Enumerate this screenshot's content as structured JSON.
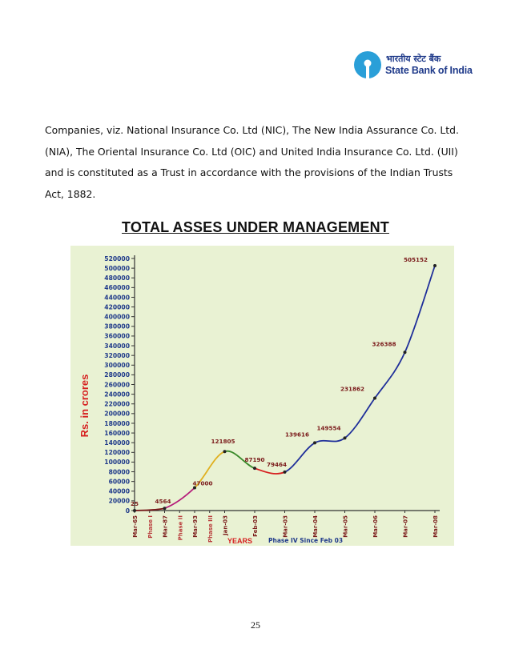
{
  "header": {
    "logo_hindi": "भारतीय स्टेट बैंक",
    "logo_english": "State Bank of India"
  },
  "paragraph": {
    "lines": [
      "Companies, viz. National Insurance Co. Ltd (NIC), The New India Assurance Co. Ltd.",
      "(NIA), The Oriental Insurance Co. Ltd (OIC) and United India Insurance Co. Ltd. (UII)",
      "and is constituted as a Trust in accordance with the provisions of the Indian Trusts",
      "Act, 1882."
    ]
  },
  "heading": "TOTAL ASSES UNDER MANAGEMENT",
  "page_number": "25",
  "chart_data": {
    "type": "line",
    "ylabel": "Rs. in crores",
    "xlabel": "YEARS",
    "xlabel_note": "Phase IV Since Feb 03",
    "ylim": [
      0,
      520000
    ],
    "y_ticks": [
      "0",
      "20000",
      "40000",
      "60000",
      "80000",
      "100000",
      "120000",
      "140000",
      "160000",
      "180000",
      "200000",
      "220000",
      "240000",
      "260000",
      "280000",
      "300000",
      "320000",
      "340000",
      "360000",
      "380000",
      "400000",
      "420000",
      "440000",
      "460000",
      "480000",
      "500000",
      "520000"
    ],
    "x_ticks": [
      {
        "label": "Mar-65",
        "pos": 0,
        "color": "#7a1a1a"
      },
      {
        "label": "Phase I",
        "pos": 1,
        "color": "#b83a3a"
      },
      {
        "label": "Mar-87",
        "pos": 2,
        "color": "#7a1a1a"
      },
      {
        "label": "Phase II",
        "pos": 3,
        "color": "#b83a3a"
      },
      {
        "label": "Mar-93",
        "pos": 4,
        "color": "#7a1a1a"
      },
      {
        "label": "Phase III",
        "pos": 5,
        "color": "#b83a3a"
      },
      {
        "label": "Jan-03",
        "pos": 6,
        "color": "#7a1a1a"
      },
      {
        "label": "Feb-03",
        "pos": 8,
        "color": "#7a1a1a"
      },
      {
        "label": "Mar-03",
        "pos": 10,
        "color": "#7a1a1a"
      },
      {
        "label": "Mar-04",
        "pos": 12,
        "color": "#7a1a1a"
      },
      {
        "label": "Mar-05",
        "pos": 14,
        "color": "#7a1a1a"
      },
      {
        "label": "Mar-06",
        "pos": 16,
        "color": "#7a1a1a"
      },
      {
        "label": "Mar-07",
        "pos": 18,
        "color": "#7a1a1a"
      },
      {
        "label": "Mar-08",
        "pos": 20,
        "color": "#7a1a1a"
      }
    ],
    "points": [
      {
        "label": "Mar-65",
        "pos": 0,
        "value": 25,
        "data_label": "25"
      },
      {
        "label": "Mar-87",
        "pos": 2,
        "value": 4564,
        "data_label": "4564"
      },
      {
        "label": "Mar-93",
        "pos": 4,
        "value": 47000,
        "data_label": "47000"
      },
      {
        "label": "Jan-03",
        "pos": 6,
        "value": 121805,
        "data_label": "121805"
      },
      {
        "label": "Feb-03",
        "pos": 8,
        "value": 87190,
        "data_label": "87190"
      },
      {
        "label": "Mar-03",
        "pos": 10,
        "value": 79464,
        "data_label": "79464"
      },
      {
        "label": "Mar-04",
        "pos": 12,
        "value": 139616,
        "data_label": "139616"
      },
      {
        "label": "Mar-05",
        "pos": 14,
        "value": 149554,
        "data_label": "149554"
      },
      {
        "label": "Mar-06",
        "pos": 16,
        "value": 231862,
        "data_label": "231862"
      },
      {
        "label": "Mar-07",
        "pos": 18,
        "value": 326388,
        "data_label": "326388"
      },
      {
        "label": "Mar-08",
        "pos": 20,
        "value": 505152,
        "data_label": "505152"
      }
    ],
    "segments": [
      {
        "from": 0,
        "to": 1,
        "color": "#7a1a1a"
      },
      {
        "from": 1,
        "to": 2,
        "color": "#b51c7a"
      },
      {
        "from": 2,
        "to": 3,
        "color": "#e0b020"
      },
      {
        "from": 3,
        "to": 4,
        "color": "#3a8a2a"
      },
      {
        "from": 4,
        "to": 5,
        "color": "#d62020"
      },
      {
        "from": 5,
        "to": 10,
        "color": "#1f2f9a"
      }
    ],
    "grid": false
  }
}
